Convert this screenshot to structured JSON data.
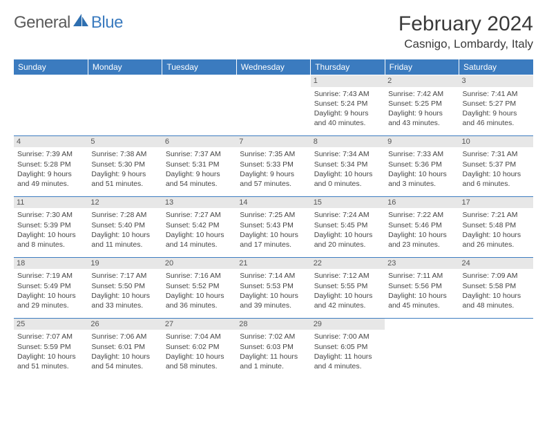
{
  "logo": {
    "text1": "General",
    "text2": "Blue"
  },
  "title": "February 2024",
  "location": "Casnigo, Lombardy, Italy",
  "dow": [
    "Sunday",
    "Monday",
    "Tuesday",
    "Wednesday",
    "Thursday",
    "Friday",
    "Saturday"
  ],
  "styling": {
    "header_bg": "#3b7bbf",
    "header_fg": "#ffffff",
    "daynum_bg": "#e7e7e7",
    "border_color": "#3b7bbf",
    "body_font_size": 10.5,
    "title_font_size": 30,
    "location_font_size": 17,
    "dow_font_size": 12
  },
  "weeks": [
    [
      {
        "n": "",
        "sr": "",
        "ss": "",
        "d1": "",
        "d2": ""
      },
      {
        "n": "",
        "sr": "",
        "ss": "",
        "d1": "",
        "d2": ""
      },
      {
        "n": "",
        "sr": "",
        "ss": "",
        "d1": "",
        "d2": ""
      },
      {
        "n": "",
        "sr": "",
        "ss": "",
        "d1": "",
        "d2": ""
      },
      {
        "n": "1",
        "sr": "Sunrise: 7:43 AM",
        "ss": "Sunset: 5:24 PM",
        "d1": "Daylight: 9 hours",
        "d2": "and 40 minutes."
      },
      {
        "n": "2",
        "sr": "Sunrise: 7:42 AM",
        "ss": "Sunset: 5:25 PM",
        "d1": "Daylight: 9 hours",
        "d2": "and 43 minutes."
      },
      {
        "n": "3",
        "sr": "Sunrise: 7:41 AM",
        "ss": "Sunset: 5:27 PM",
        "d1": "Daylight: 9 hours",
        "d2": "and 46 minutes."
      }
    ],
    [
      {
        "n": "4",
        "sr": "Sunrise: 7:39 AM",
        "ss": "Sunset: 5:28 PM",
        "d1": "Daylight: 9 hours",
        "d2": "and 49 minutes."
      },
      {
        "n": "5",
        "sr": "Sunrise: 7:38 AM",
        "ss": "Sunset: 5:30 PM",
        "d1": "Daylight: 9 hours",
        "d2": "and 51 minutes."
      },
      {
        "n": "6",
        "sr": "Sunrise: 7:37 AM",
        "ss": "Sunset: 5:31 PM",
        "d1": "Daylight: 9 hours",
        "d2": "and 54 minutes."
      },
      {
        "n": "7",
        "sr": "Sunrise: 7:35 AM",
        "ss": "Sunset: 5:33 PM",
        "d1": "Daylight: 9 hours",
        "d2": "and 57 minutes."
      },
      {
        "n": "8",
        "sr": "Sunrise: 7:34 AM",
        "ss": "Sunset: 5:34 PM",
        "d1": "Daylight: 10 hours",
        "d2": "and 0 minutes."
      },
      {
        "n": "9",
        "sr": "Sunrise: 7:33 AM",
        "ss": "Sunset: 5:36 PM",
        "d1": "Daylight: 10 hours",
        "d2": "and 3 minutes."
      },
      {
        "n": "10",
        "sr": "Sunrise: 7:31 AM",
        "ss": "Sunset: 5:37 PM",
        "d1": "Daylight: 10 hours",
        "d2": "and 6 minutes."
      }
    ],
    [
      {
        "n": "11",
        "sr": "Sunrise: 7:30 AM",
        "ss": "Sunset: 5:39 PM",
        "d1": "Daylight: 10 hours",
        "d2": "and 8 minutes."
      },
      {
        "n": "12",
        "sr": "Sunrise: 7:28 AM",
        "ss": "Sunset: 5:40 PM",
        "d1": "Daylight: 10 hours",
        "d2": "and 11 minutes."
      },
      {
        "n": "13",
        "sr": "Sunrise: 7:27 AM",
        "ss": "Sunset: 5:42 PM",
        "d1": "Daylight: 10 hours",
        "d2": "and 14 minutes."
      },
      {
        "n": "14",
        "sr": "Sunrise: 7:25 AM",
        "ss": "Sunset: 5:43 PM",
        "d1": "Daylight: 10 hours",
        "d2": "and 17 minutes."
      },
      {
        "n": "15",
        "sr": "Sunrise: 7:24 AM",
        "ss": "Sunset: 5:45 PM",
        "d1": "Daylight: 10 hours",
        "d2": "and 20 minutes."
      },
      {
        "n": "16",
        "sr": "Sunrise: 7:22 AM",
        "ss": "Sunset: 5:46 PM",
        "d1": "Daylight: 10 hours",
        "d2": "and 23 minutes."
      },
      {
        "n": "17",
        "sr": "Sunrise: 7:21 AM",
        "ss": "Sunset: 5:48 PM",
        "d1": "Daylight: 10 hours",
        "d2": "and 26 minutes."
      }
    ],
    [
      {
        "n": "18",
        "sr": "Sunrise: 7:19 AM",
        "ss": "Sunset: 5:49 PM",
        "d1": "Daylight: 10 hours",
        "d2": "and 29 minutes."
      },
      {
        "n": "19",
        "sr": "Sunrise: 7:17 AM",
        "ss": "Sunset: 5:50 PM",
        "d1": "Daylight: 10 hours",
        "d2": "and 33 minutes."
      },
      {
        "n": "20",
        "sr": "Sunrise: 7:16 AM",
        "ss": "Sunset: 5:52 PM",
        "d1": "Daylight: 10 hours",
        "d2": "and 36 minutes."
      },
      {
        "n": "21",
        "sr": "Sunrise: 7:14 AM",
        "ss": "Sunset: 5:53 PM",
        "d1": "Daylight: 10 hours",
        "d2": "and 39 minutes."
      },
      {
        "n": "22",
        "sr": "Sunrise: 7:12 AM",
        "ss": "Sunset: 5:55 PM",
        "d1": "Daylight: 10 hours",
        "d2": "and 42 minutes."
      },
      {
        "n": "23",
        "sr": "Sunrise: 7:11 AM",
        "ss": "Sunset: 5:56 PM",
        "d1": "Daylight: 10 hours",
        "d2": "and 45 minutes."
      },
      {
        "n": "24",
        "sr": "Sunrise: 7:09 AM",
        "ss": "Sunset: 5:58 PM",
        "d1": "Daylight: 10 hours",
        "d2": "and 48 minutes."
      }
    ],
    [
      {
        "n": "25",
        "sr": "Sunrise: 7:07 AM",
        "ss": "Sunset: 5:59 PM",
        "d1": "Daylight: 10 hours",
        "d2": "and 51 minutes."
      },
      {
        "n": "26",
        "sr": "Sunrise: 7:06 AM",
        "ss": "Sunset: 6:01 PM",
        "d1": "Daylight: 10 hours",
        "d2": "and 54 minutes."
      },
      {
        "n": "27",
        "sr": "Sunrise: 7:04 AM",
        "ss": "Sunset: 6:02 PM",
        "d1": "Daylight: 10 hours",
        "d2": "and 58 minutes."
      },
      {
        "n": "28",
        "sr": "Sunrise: 7:02 AM",
        "ss": "Sunset: 6:03 PM",
        "d1": "Daylight: 11 hours",
        "d2": "and 1 minute."
      },
      {
        "n": "29",
        "sr": "Sunrise: 7:00 AM",
        "ss": "Sunset: 6:05 PM",
        "d1": "Daylight: 11 hours",
        "d2": "and 4 minutes."
      },
      {
        "n": "",
        "sr": "",
        "ss": "",
        "d1": "",
        "d2": ""
      },
      {
        "n": "",
        "sr": "",
        "ss": "",
        "d1": "",
        "d2": ""
      }
    ]
  ]
}
